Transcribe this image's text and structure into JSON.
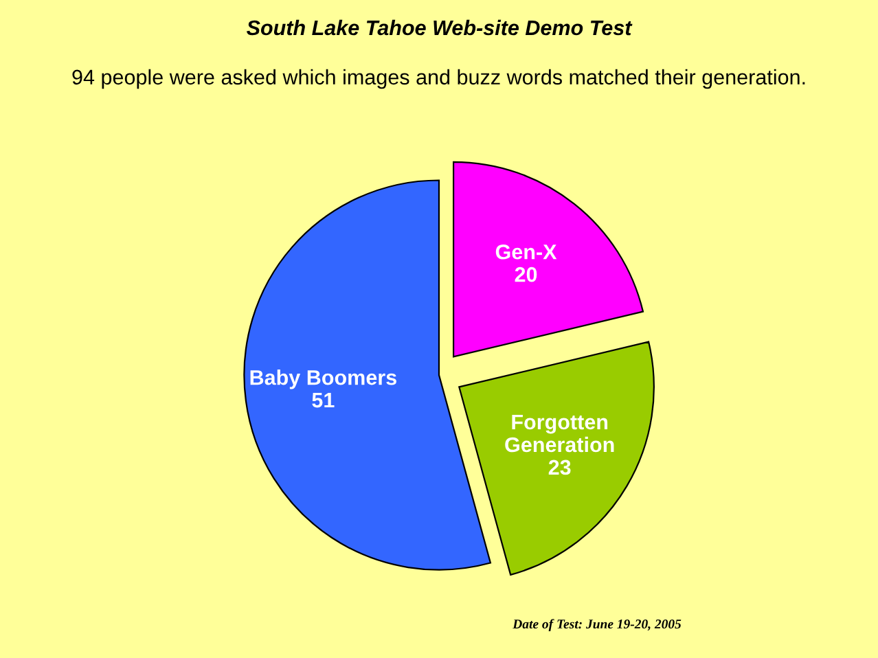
{
  "chart_data": {
    "type": "pie",
    "title": "South Lake Tahoe Web-site Demo Test",
    "subtitle": "94 people were asked which images and buzz words matched their generation.",
    "categories": [
      "Gen-X",
      "Forgotten Generation",
      "Baby Boomers"
    ],
    "values": [
      20,
      23,
      51
    ],
    "colors": [
      "#ff00ff",
      "#99cc00",
      "#3366ff"
    ],
    "data_labels": true,
    "annotations": [
      "Date of Test: June 19-20, 2005"
    ]
  }
}
